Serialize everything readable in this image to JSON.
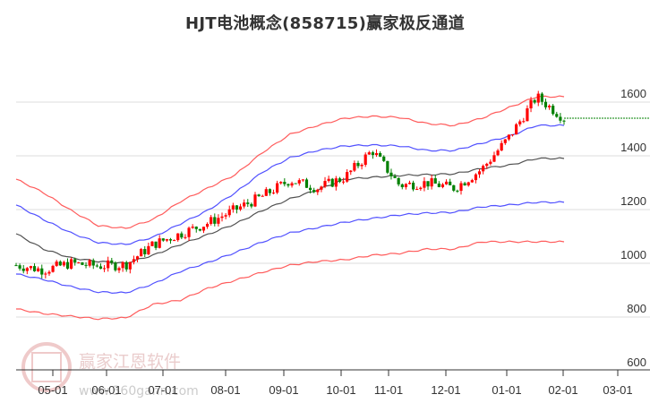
{
  "title": "HJT电池概念(858715)赢家极反通道",
  "watermark": {
    "seal_chars": [
      "江",
      "赢",
      "恩",
      "家"
    ],
    "brand": "赢家江恩软件",
    "url": "www.360gann.com"
  },
  "colors": {
    "up_candle": "#ff0000",
    "down_candle": "#008000",
    "outer_band": "#ff4040",
    "inner_band": "#3333ff",
    "middle_line": "#333333",
    "last_price_line": "#008000",
    "grid": "#dddddd"
  },
  "chart_data": {
    "type": "candlestick",
    "title": "HJT电池概念(858715)赢家极反通道",
    "xlabel": "",
    "ylabel": "",
    "ylim": [
      600,
      1700
    ],
    "y_ticks": [
      600,
      800,
      1000,
      1200,
      1400,
      1600
    ],
    "x_ticks": [
      "05-01",
      "06-01",
      "07-01",
      "08-01",
      "09-01",
      "10-01",
      "11-01",
      "12-01",
      "01-01",
      "02-01",
      "03-01"
    ],
    "grid": {
      "horizontal": true,
      "vertical": false
    },
    "last_price": 1540,
    "x": [
      "04-10",
      "05-01",
      "05-20",
      "06-01",
      "06-15",
      "07-01",
      "07-20",
      "08-01",
      "08-20",
      "09-01",
      "09-20",
      "10-01",
      "10-20",
      "11-01",
      "11-15",
      "12-01",
      "12-15",
      "01-01",
      "01-10",
      "01-25",
      "02-01"
    ],
    "series": [
      {
        "name": "上轨(外)",
        "color": "#ff4040",
        "values": [
          1313,
          1263,
          1197,
          1140,
          1130,
          1163,
          1230,
          1280,
          1330,
          1413,
          1480,
          1513,
          1540,
          1547,
          1543,
          1520,
          1513,
          1540,
          1580,
          1620,
          1620
        ]
      },
      {
        "name": "上轨(内)",
        "color": "#3333ff",
        "values": [
          1217,
          1163,
          1113,
          1077,
          1070,
          1097,
          1147,
          1197,
          1263,
          1340,
          1393,
          1420,
          1437,
          1440,
          1437,
          1420,
          1420,
          1447,
          1473,
          1513,
          1513
        ]
      },
      {
        "name": "中轨",
        "color": "#333333",
        "values": [
          1110,
          1053,
          1020,
          1007,
          1000,
          1030,
          1070,
          1107,
          1147,
          1197,
          1240,
          1273,
          1313,
          1320,
          1327,
          1330,
          1333,
          1353,
          1365,
          1390,
          1390
        ]
      },
      {
        "name": "下轨(内)",
        "color": "#3333ff",
        "values": [
          960,
          940,
          913,
          893,
          890,
          923,
          970,
          1003,
          1040,
          1080,
          1113,
          1133,
          1153,
          1167,
          1180,
          1187,
          1190,
          1210,
          1217,
          1227,
          1227
        ]
      },
      {
        "name": "下轨(外)",
        "color": "#ff4040",
        "values": [
          830,
          813,
          803,
          793,
          797,
          847,
          863,
          907,
          937,
          967,
          993,
          1007,
          1013,
          1030,
          1037,
          1053,
          1053,
          1080,
          1080,
          1080,
          1080
        ]
      },
      {
        "name": "收盘价",
        "color": "#ff0000",
        "values": [
          993,
          975,
          1000,
          990,
          995,
          1070,
          1110,
          1150,
          1200,
          1250,
          1310,
          1280,
          1320,
          1420,
          1290,
          1300,
          1280,
          1350,
          1470,
          1620,
          1540
        ]
      }
    ]
  }
}
